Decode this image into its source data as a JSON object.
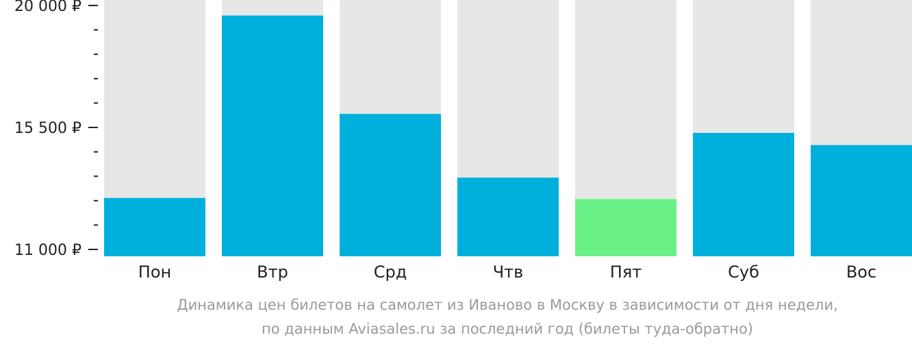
{
  "chart_data": {
    "type": "bar",
    "categories": [
      "Пон",
      "Втр",
      "Срд",
      "Чтв",
      "Пят",
      "Суб",
      "Вос"
    ],
    "values": [
      12900,
      19630,
      16000,
      13650,
      12860,
      15300,
      14850
    ],
    "ylim": [
      11000,
      20000
    ],
    "yticks": [
      {
        "value": 20000,
        "label": "20 000 ₽"
      },
      {
        "value": 15500,
        "label": "15 500 ₽"
      },
      {
        "value": 11000,
        "label": "11 000 ₽"
      }
    ],
    "minor_tick_step": 900,
    "highlight_index": 4,
    "grid": false,
    "legend": "none"
  },
  "caption": {
    "line1": "Динамика цен билетов на самолет из Иваново в Москву в зависимости от дня недели,",
    "line2": "по данным Aviasales.ru за последний год (билеты туда-обратно)"
  },
  "colors": {
    "bar": "#00b0dc",
    "highlight": "#6af186",
    "background_bar": "#e7e7e8",
    "axis": "#222222",
    "caption": "#9a9a9a"
  }
}
